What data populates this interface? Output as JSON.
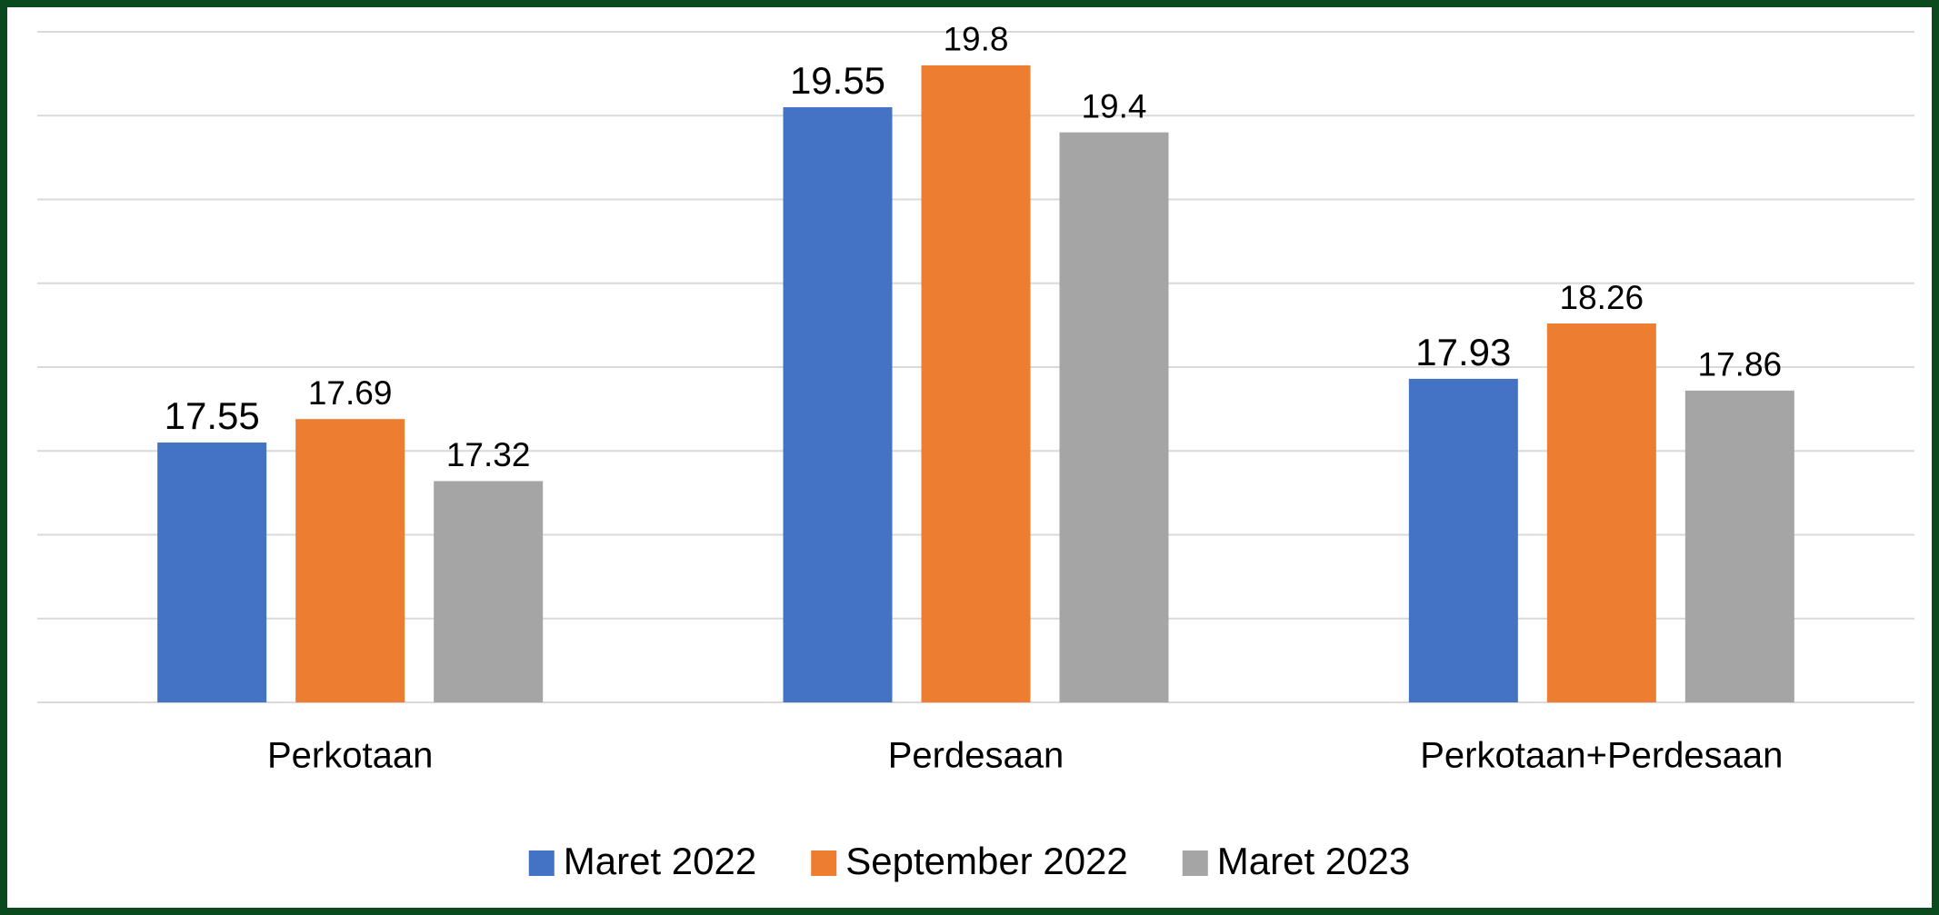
{
  "chart_data": {
    "type": "bar",
    "categories": [
      "Perkotaan",
      "Perdesaan",
      "Perkotaan+Perdesaan"
    ],
    "series": [
      {
        "name": "Maret 2022",
        "color": "#4472c4",
        "values": [
          17.55,
          19.55,
          17.93
        ]
      },
      {
        "name": "September 2022",
        "color": "#ed7d31",
        "values": [
          17.69,
          19.8,
          18.26
        ]
      },
      {
        "name": "Maret 2023",
        "color": "#a5a5a5",
        "values": [
          17.32,
          19.4,
          17.86
        ]
      }
    ],
    "ylim": [
      16,
      20
    ],
    "yticks": [
      16,
      16.5,
      17,
      17.5,
      18,
      18.5,
      19,
      19.5,
      20
    ],
    "grid": true,
    "legend": "bottom"
  }
}
